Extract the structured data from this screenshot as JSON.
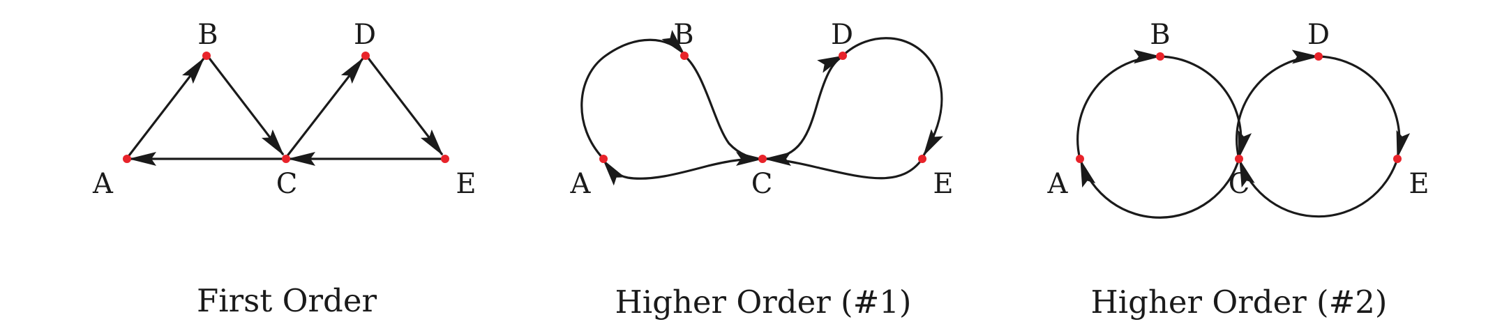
{
  "colors": {
    "edge": "#1a1a1a",
    "node": "#e8232a",
    "background": "#ffffff"
  },
  "panels": [
    {
      "caption": "First Order",
      "nodes": {
        "A": "A",
        "B": "B",
        "C": "C",
        "D": "D",
        "E": "E"
      },
      "edges": [
        [
          "A",
          "B"
        ],
        [
          "B",
          "C"
        ],
        [
          "C",
          "A"
        ],
        [
          "C",
          "D"
        ],
        [
          "D",
          "E"
        ],
        [
          "E",
          "C"
        ]
      ]
    },
    {
      "caption": "Higher Order (#1)",
      "nodes": {
        "A": "A",
        "B": "B",
        "C": "C",
        "D": "D",
        "E": "E"
      },
      "edges": [
        [
          "A",
          "B"
        ],
        [
          "B",
          "C"
        ],
        [
          "C",
          "D"
        ],
        [
          "D",
          "E"
        ],
        [
          "E",
          "C"
        ],
        [
          "C",
          "A"
        ]
      ]
    },
    {
      "caption": "Higher Order (#2)",
      "nodes": {
        "A": "A",
        "B": "B",
        "C": "C",
        "D": "D",
        "E": "E"
      },
      "edges": [
        [
          "A",
          "B"
        ],
        [
          "B",
          "C"
        ],
        [
          "C",
          "A"
        ],
        [
          "C",
          "D"
        ],
        [
          "D",
          "E"
        ],
        [
          "E",
          "C"
        ]
      ]
    }
  ]
}
